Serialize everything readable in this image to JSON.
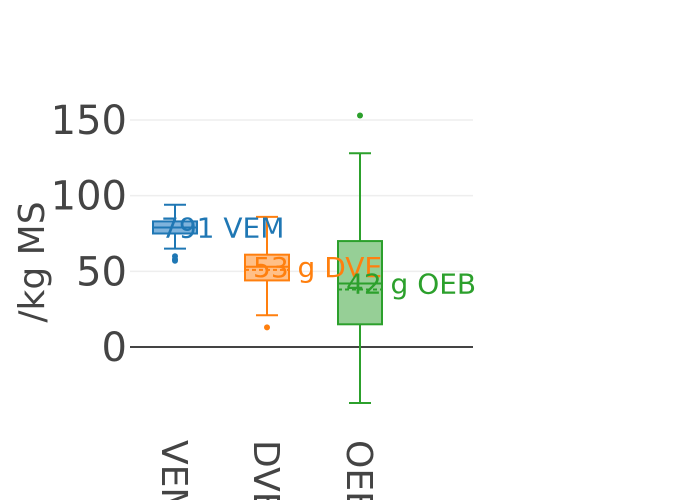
{
  "chart_data": {
    "type": "box",
    "ylabel": "/kg MS",
    "ylim": [
      -45,
      170
    ],
    "yticks": [
      0,
      50,
      100,
      150
    ],
    "grid": true,
    "categories": [
      "VEM",
      "DVE",
      "OEB"
    ],
    "series": [
      {
        "category": "VEM",
        "color": "#1f77b4",
        "fill": "#7fb3dc",
        "min": 65,
        "q1": 75,
        "median": 79,
        "mean": 79,
        "q3": 83,
        "max": 94,
        "outliers": [
          60,
          58,
          57
        ],
        "annotation": "791 VEM"
      },
      {
        "category": "DVE",
        "color": "#ff7f0e",
        "fill": "#ffbf87",
        "min": 21,
        "q1": 44,
        "median": 53,
        "mean": 51,
        "q3": 61,
        "max": 86,
        "outliers": [
          13
        ],
        "annotation": "53 g DVE"
      },
      {
        "category": "OEB",
        "color": "#2ca02c",
        "fill": "#96cf96",
        "min": -37,
        "q1": 15,
        "median": 42,
        "mean": 38,
        "q3": 70,
        "max": 128,
        "outliers": [
          153
        ],
        "annotation": "42 g OEB"
      }
    ]
  }
}
